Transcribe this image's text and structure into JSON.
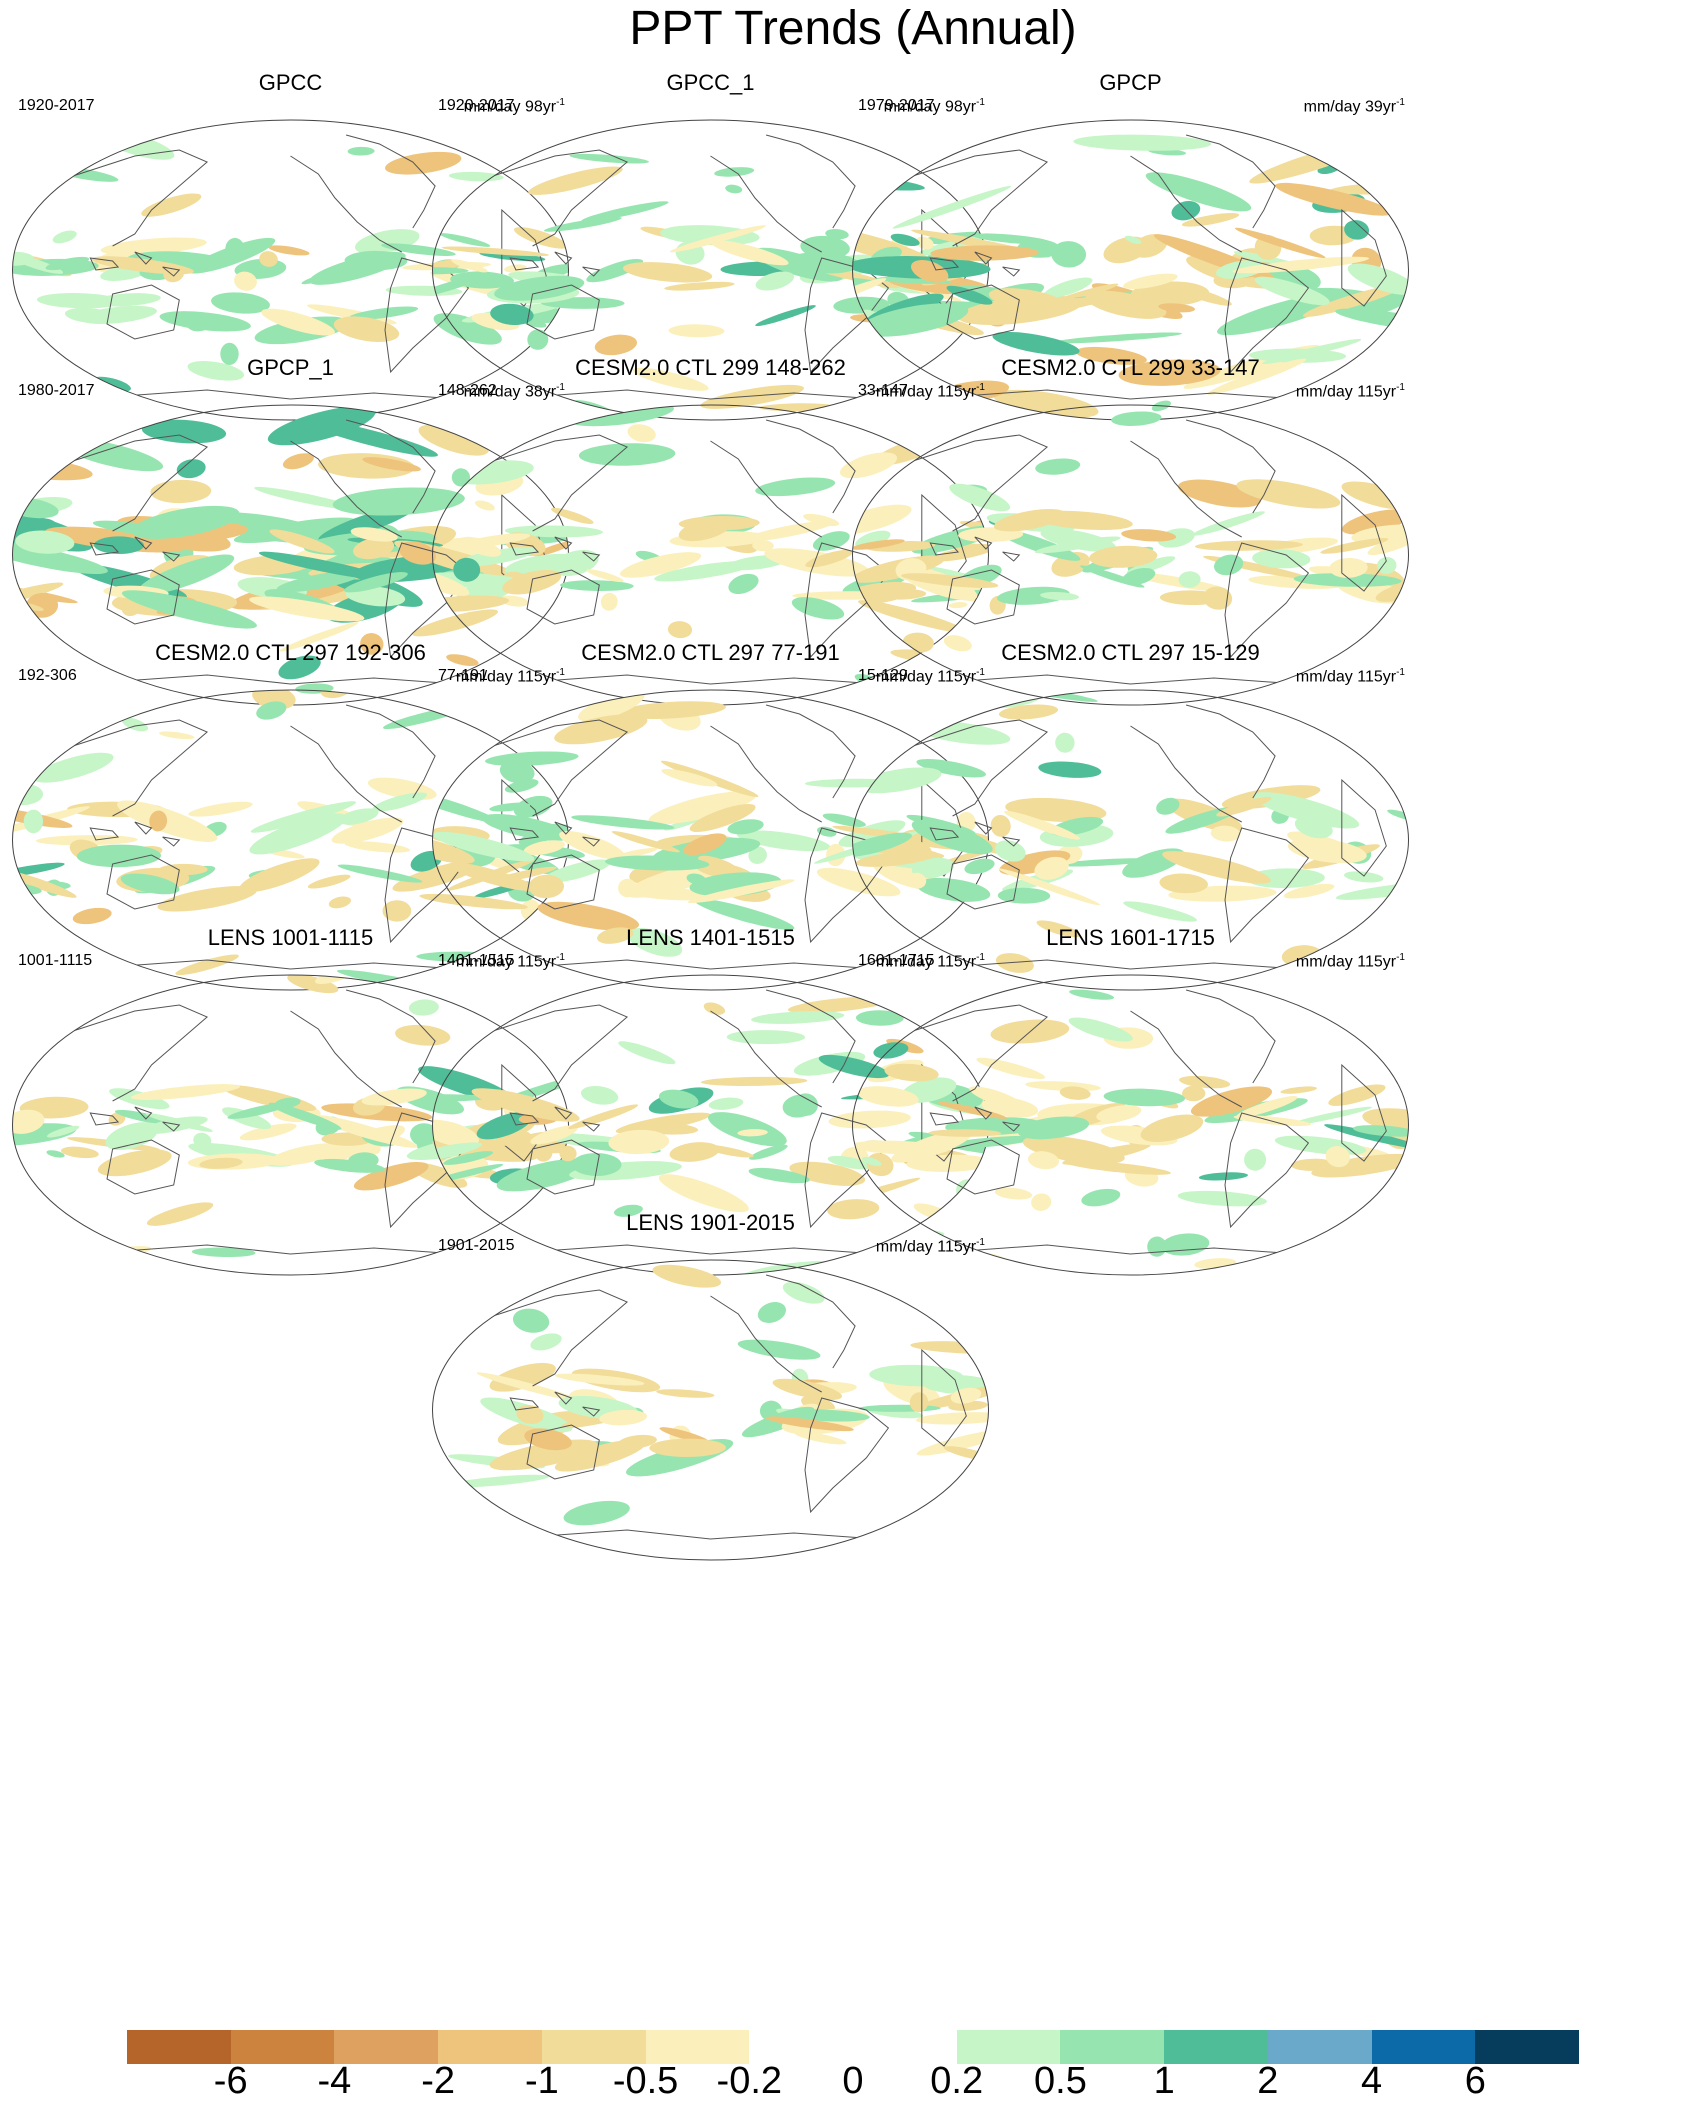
{
  "title": "PPT Trends (Annual)",
  "panels": [
    {
      "title": "GPCC",
      "period": "1920-2017",
      "units": "mm/day",
      "span": "98yr",
      "exp": "-1",
      "sig": 0.55,
      "dry": 0.25,
      "strong": 0.2
    },
    {
      "title": "GPCC_1",
      "period": "1920-2017",
      "units": "mm/day",
      "span": "98yr",
      "exp": "-1",
      "sig": 0.55,
      "dry": 0.25,
      "strong": 0.2
    },
    {
      "title": "GPCP",
      "period": "1979-2017",
      "units": "mm/day",
      "span": "39yr",
      "exp": "-1",
      "sig": 1.0,
      "dry": 0.45,
      "strong": 0.65
    },
    {
      "title": "GPCP_1",
      "period": "1980-2017",
      "units": "mm/day",
      "span": "38yr",
      "exp": "-1",
      "sig": 1.0,
      "dry": 0.45,
      "strong": 0.65
    },
    {
      "title": "CESM2.0 CTL 299 148-262",
      "period": "148-262",
      "units": "mm/day",
      "span": "115yr",
      "exp": "-1",
      "sig": 0.6,
      "dry": 0.55,
      "strong": 0.15
    },
    {
      "title": "CESM2.0 CTL 299 33-147",
      "period": "33-147",
      "units": "mm/day",
      "span": "115yr",
      "exp": "-1",
      "sig": 0.6,
      "dry": 0.6,
      "strong": 0.15
    },
    {
      "title": "CESM2.0 CTL 297 192-306",
      "period": "192-306",
      "units": "mm/day",
      "span": "115yr",
      "exp": "-1",
      "sig": 0.6,
      "dry": 0.55,
      "strong": 0.15
    },
    {
      "title": "CESM2.0 CTL 297 77-191",
      "period": "77-191",
      "units": "mm/day",
      "span": "115yr",
      "exp": "-1",
      "sig": 0.65,
      "dry": 0.5,
      "strong": 0.2
    },
    {
      "title": "CESM2.0 CTL 297 15-129",
      "period": "15-129",
      "units": "mm/day",
      "span": "115yr",
      "exp": "-1",
      "sig": 0.6,
      "dry": 0.5,
      "strong": 0.15
    },
    {
      "title": "LENS 1001-1115",
      "period": "1001-1115",
      "units": "mm/day",
      "span": "115yr",
      "exp": "-1",
      "sig": 0.6,
      "dry": 0.55,
      "strong": 0.15
    },
    {
      "title": "LENS 1401-1515",
      "period": "1401-1515",
      "units": "mm/day",
      "span": "115yr",
      "exp": "-1",
      "sig": 0.65,
      "dry": 0.5,
      "strong": 0.2
    },
    {
      "title": "LENS 1601-1715",
      "period": "1601-1715",
      "units": "mm/day",
      "span": "115yr",
      "exp": "-1",
      "sig": 0.6,
      "dry": 0.6,
      "strong": 0.15
    },
    {
      "title": "LENS 1901-2015",
      "period": "1901-2015",
      "units": "mm/day",
      "span": "115yr",
      "exp": "-1",
      "sig": 0.6,
      "dry": 0.55,
      "strong": 0.2
    }
  ],
  "colorbar": {
    "colors": [
      "#b5652a",
      "#cc833e",
      "#dfa160",
      "#eec47c",
      "#f2dc9a",
      "#fbf0bb",
      "#ffffff",
      "#ffffff",
      "#c6f5c7",
      "#96e5b0",
      "#4fbe98",
      "#6aa9c9",
      "#0c6aa9",
      "#063c5c"
    ],
    "labels": [
      "-6",
      "-4",
      "-2",
      "-1",
      "-0.5",
      "-0.2",
      "0",
      "0.2",
      "0.5",
      "1",
      "2",
      "4",
      "6"
    ]
  }
}
